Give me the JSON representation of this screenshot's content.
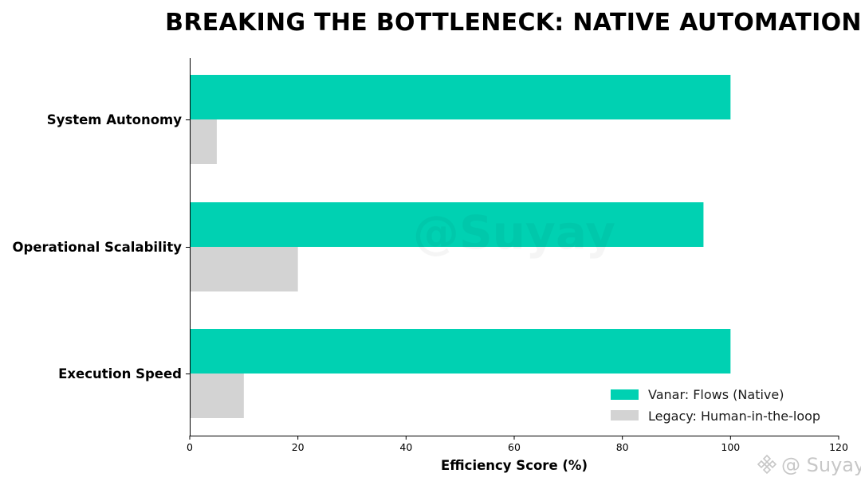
{
  "chart_data": {
    "type": "bar",
    "orientation": "horizontal",
    "title": "BREAKING THE BOTTLENECK: NATIVE AUTOMATION",
    "xlabel": "Efficiency Score (%)",
    "ylabel": "",
    "categories": [
      "System Autonomy",
      "Operational Scalability",
      "Execution Speed"
    ],
    "series": [
      {
        "name": "Vanar: Flows (Native)",
        "values": [
          100,
          95,
          100
        ],
        "color": "#00d1b2"
      },
      {
        "name": "Legacy: Human-in-the-loop",
        "values": [
          5,
          20,
          10
        ],
        "color": "#d3d3d3"
      }
    ],
    "xlim": [
      0,
      120
    ],
    "xticks": [
      0,
      20,
      40,
      60,
      80,
      100,
      120
    ],
    "grid": false,
    "legend_position": "bottom-right"
  },
  "watermarks": {
    "center": "@Suyay",
    "corner": "@ Suyay",
    "corner_icon": "binance-logo-icon"
  }
}
